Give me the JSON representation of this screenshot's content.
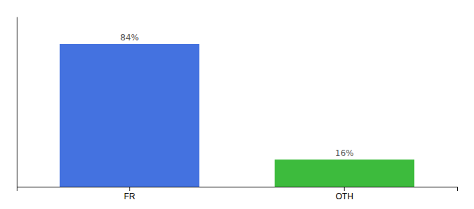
{
  "chart_data": {
    "type": "bar",
    "categories": [
      "FR",
      "OTH"
    ],
    "values": [
      84,
      16
    ],
    "value_labels": [
      "84%",
      "16%"
    ],
    "colors": [
      "#4472e0",
      "#3dbb3d"
    ],
    "ylim": [
      0,
      100
    ],
    "data_labels": true,
    "tick_labels": "x"
  }
}
